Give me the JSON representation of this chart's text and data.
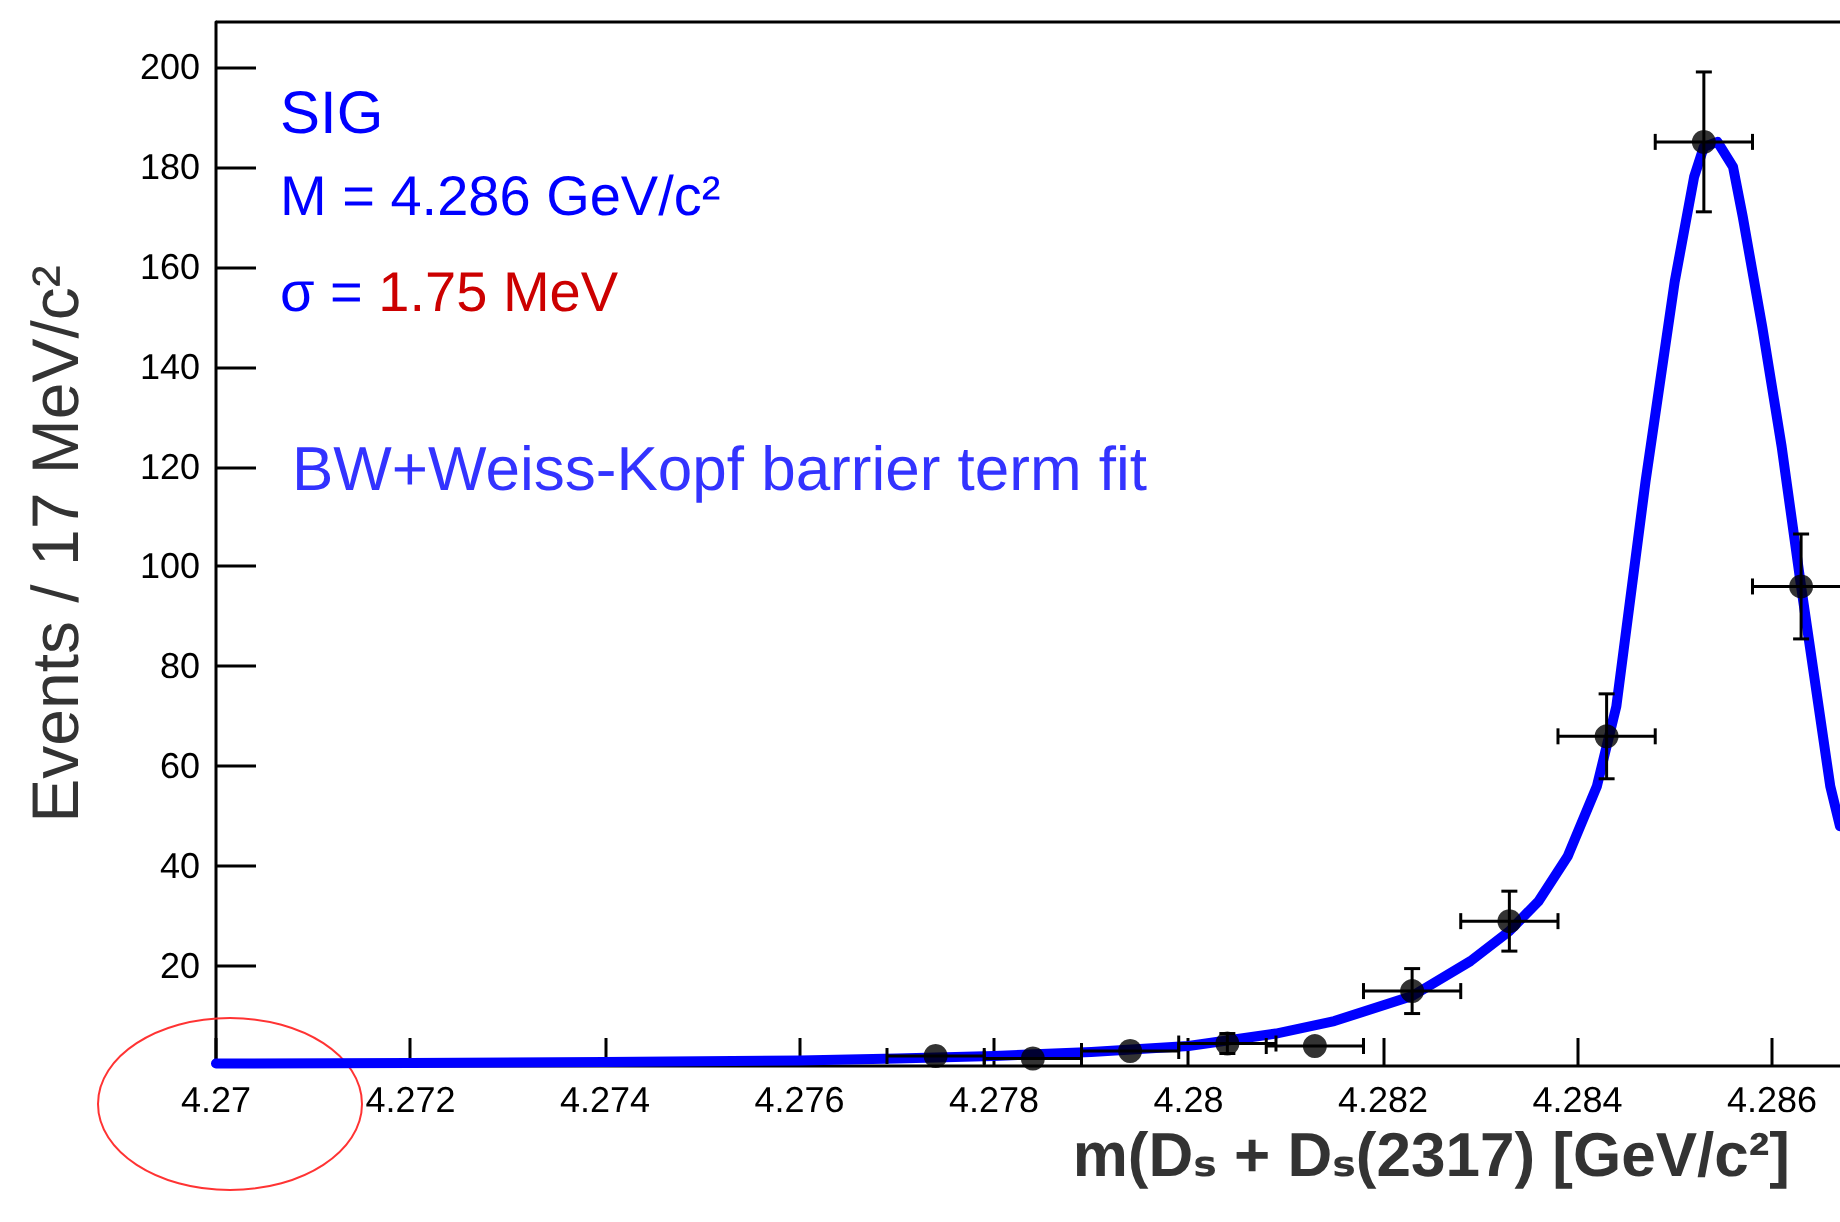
{
  "chart_data": {
    "type": "scatter",
    "xlabel": "m(Dₛ + Dₛ(2317) [GeV/c²]",
    "ylabel": "Events / 17 MeV/c²",
    "annotations": [
      "SIG",
      "M = 4.286 GeV/c²",
      "σ = 1.75 MeV",
      "BW+Weiss-Kopf barrier term fit"
    ],
    "xlim": [
      4.27,
      4.2867
    ],
    "xticks": [
      4.27,
      4.272,
      4.274,
      4.276,
      4.278,
      4.28,
      4.282,
      4.284,
      4.286
    ],
    "ylim": [
      0,
      209
    ],
    "yticks": [
      {
        "value": 0,
        "label": null
      },
      20,
      40,
      60,
      80,
      100,
      120,
      140,
      160,
      180,
      200
    ],
    "series": [
      {
        "color": "#000000",
        "marker": "circle",
        "x": [
          4.2774,
          4.2784,
          4.2794,
          4.2804,
          4.2813,
          4.2823,
          4.2833,
          4.2843,
          4.2853,
          4.2863
        ],
        "values": [
          2,
          1.5,
          3,
          4.5,
          4,
          15,
          29,
          66,
          185,
          96
        ],
        "errors": [
          null,
          null,
          null,
          2,
          null,
          4.5,
          6,
          8.5,
          14,
          10.5
        ],
        "xerrors": [
          0.0005,
          0.0005,
          0.0005,
          0.0005,
          0.0005,
          0.0005,
          0.0005,
          0.0005,
          0.0005,
          0.0005
        ]
      },
      {
        "type": "line",
        "color": "#0000ff",
        "x": [
          4.27,
          4.272,
          4.274,
          4.276,
          4.277,
          4.278,
          4.279,
          4.28,
          4.2809,
          4.2815,
          4.2823,
          4.2829,
          4.2833,
          4.2836,
          4.2839,
          4.2842,
          4.2844,
          4.2847,
          4.285,
          4.2852,
          4.2853,
          4.28544,
          4.2856,
          4.2857,
          4.2859,
          4.2861,
          4.2863,
          4.2866,
          4.2867
        ],
        "values": [
          0.5,
          0.6,
          0.8,
          1.1,
          1.5,
          2,
          2.8,
          4,
          6.5,
          9,
          14,
          21,
          27,
          33,
          42,
          56,
          72,
          117,
          157,
          178,
          184,
          185,
          180,
          170,
          148,
          124,
          96,
          56,
          48
        ]
      }
    ]
  }
}
